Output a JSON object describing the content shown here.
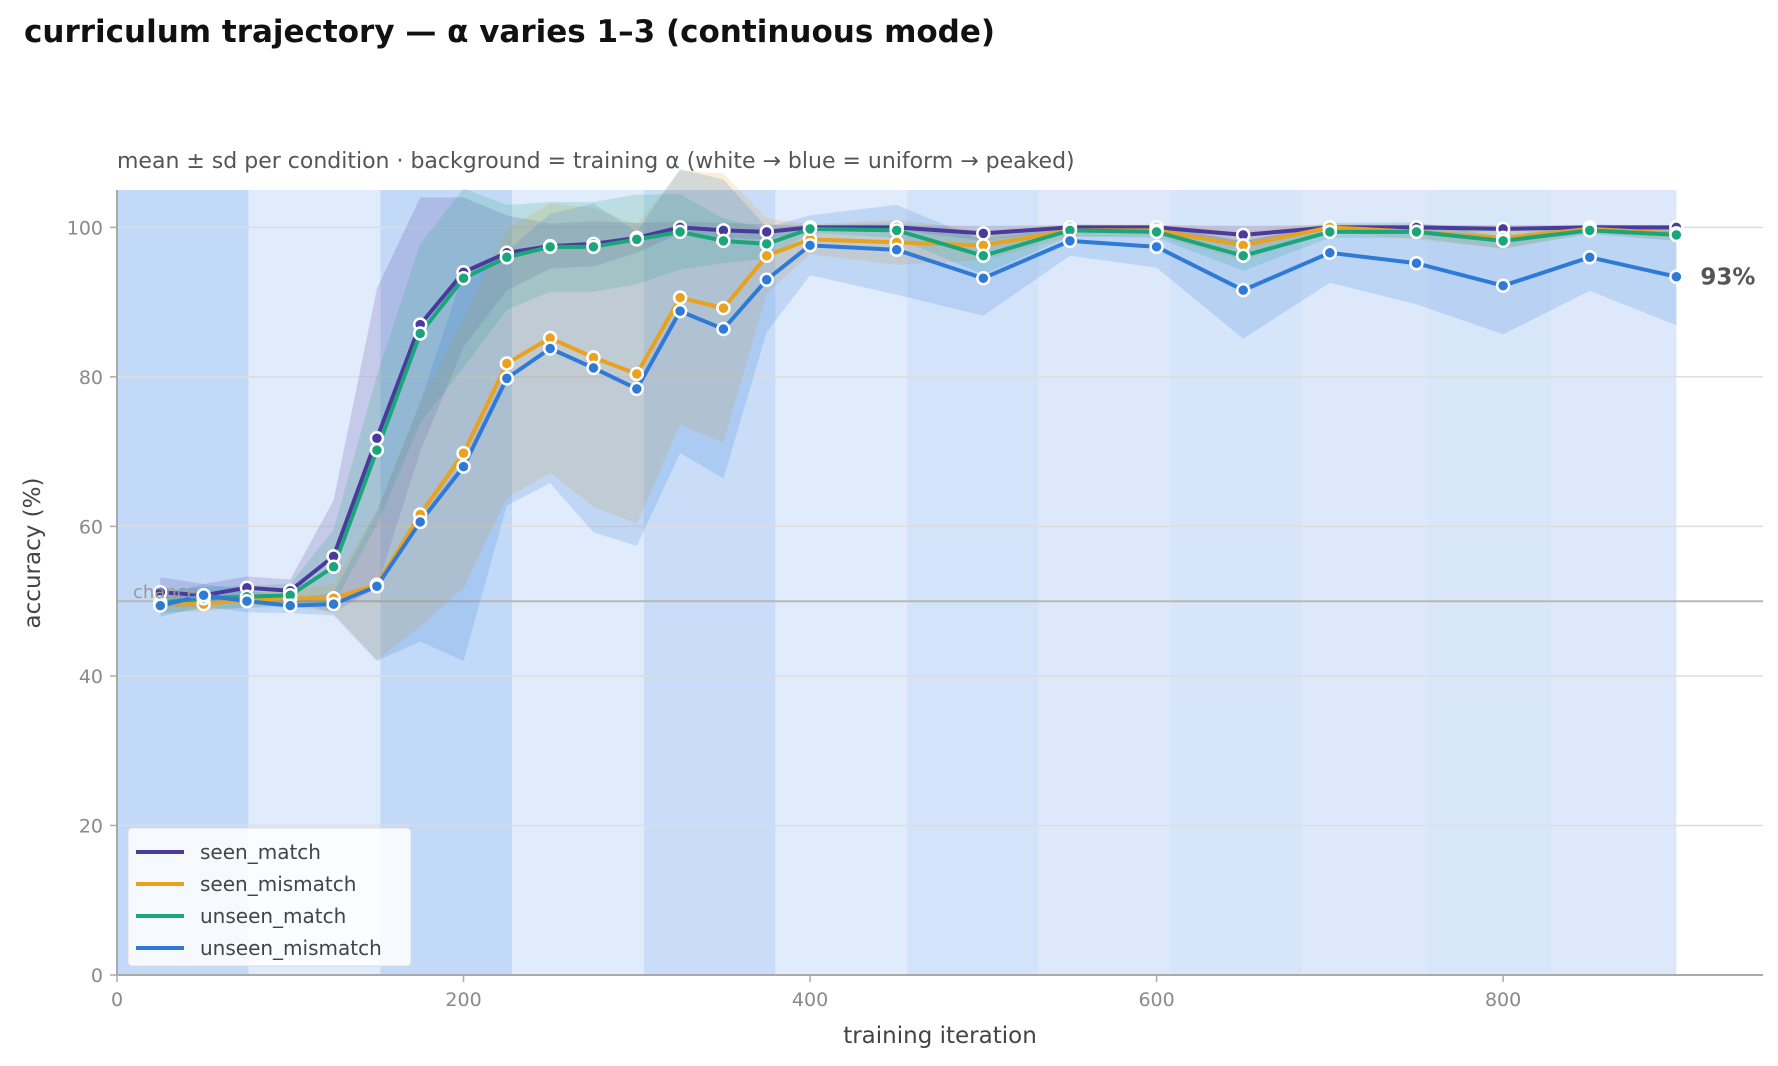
{
  "chart_data": {
    "type": "line",
    "title": "curriculum trajectory — α varies 1–3 (continuous mode)",
    "subtitle": "mean ± sd per condition · background = training α (white → blue = uniform → peaked)",
    "xlabel": "training iteration",
    "ylabel": "accuracy (%)",
    "xlim": [
      0,
      950
    ],
    "ylim": [
      0,
      105
    ],
    "xticks": [
      0,
      200,
      400,
      600,
      800
    ],
    "yticks": [
      0,
      20,
      40,
      60,
      80,
      100
    ],
    "grid": "horizontal",
    "legend_position": "lower-left",
    "x": [
      25,
      50,
      75,
      100,
      125,
      150,
      175,
      200,
      225,
      250,
      275,
      300,
      325,
      350,
      375,
      400,
      450,
      500,
      550,
      600,
      650,
      700,
      750,
      800,
      850,
      900
    ],
    "series": [
      {
        "name": "seen_match",
        "color": "#4b3a9e",
        "values": [
          51.2,
          50.8,
          51.8,
          51.4,
          56.0,
          71.8,
          87.0,
          94.0,
          96.6,
          97.5,
          97.8,
          98.6,
          100.0,
          99.6,
          99.4,
          100.0,
          100.0,
          99.2,
          100.0,
          100.0,
          99.0,
          100.0,
          100.0,
          99.8,
          100.0,
          100.0
        ],
        "sd": [
          2.0,
          1.5,
          1.5,
          1.5,
          7.5,
          20.0,
          17.0,
          10.0,
          5.0,
          3.0,
          3.0,
          2.0,
          0.8,
          1.0,
          1.0,
          0.3,
          0.3,
          1.0,
          0.3,
          0.3,
          1.2,
          0.3,
          0.3,
          0.5,
          0.3,
          0.3
        ]
      },
      {
        "name": "seen_mismatch",
        "color": "#e9a21d",
        "values": [
          49.6,
          49.6,
          50.2,
          50.4,
          50.4,
          52.2,
          61.6,
          69.8,
          81.8,
          85.2,
          82.6,
          80.4,
          90.6,
          89.2,
          96.2,
          98.4,
          98.0,
          97.6,
          99.6,
          99.6,
          97.6,
          100.0,
          99.4,
          98.6,
          99.8,
          99.2
        ],
        "sd": [
          1.0,
          1.0,
          1.0,
          1.0,
          2.0,
          10.0,
          15.0,
          18.0,
          18.0,
          18.0,
          20.0,
          20.0,
          17.0,
          18.0,
          5.0,
          2.0,
          3.0,
          2.0,
          0.8,
          0.8,
          2.0,
          0.5,
          1.0,
          1.5,
          0.5,
          1.0
        ]
      },
      {
        "name": "unseen_match",
        "color": "#1aa67a",
        "values": [
          49.8,
          50.4,
          50.6,
          50.8,
          54.6,
          70.2,
          85.8,
          93.2,
          96.0,
          97.4,
          97.4,
          98.4,
          99.4,
          98.2,
          97.8,
          99.8,
          99.6,
          96.2,
          99.6,
          99.4,
          96.2,
          99.4,
          99.4,
          98.2,
          99.6,
          99.0
        ],
        "sd": [
          1.5,
          1.5,
          1.5,
          1.5,
          5.0,
          10.0,
          12.0,
          12.0,
          7.0,
          6.0,
          6.0,
          6.0,
          5.0,
          3.0,
          2.0,
          0.5,
          1.0,
          2.5,
          0.8,
          0.8,
          2.0,
          0.8,
          0.8,
          1.0,
          0.5,
          0.8
        ]
      },
      {
        "name": "unseen_mismatch",
        "color": "#2f7ad6",
        "values": [
          49.4,
          50.8,
          50.0,
          49.4,
          49.6,
          52.0,
          60.6,
          68.0,
          79.8,
          83.8,
          81.2,
          78.4,
          88.8,
          86.4,
          93.0,
          97.6,
          97.0,
          93.2,
          98.2,
          97.4,
          91.6,
          96.6,
          95.2,
          92.2,
          96.0,
          93.4
        ],
        "sd": [
          1.5,
          1.5,
          1.5,
          1.0,
          1.5,
          10.0,
          16.0,
          26.0,
          17.0,
          18.0,
          22.0,
          21.0,
          19.0,
          20.0,
          7.0,
          4.0,
          6.0,
          5.0,
          2.0,
          2.8,
          6.5,
          4.0,
          5.5,
          6.5,
          4.5,
          6.5
        ]
      }
    ],
    "chance": {
      "label": "chance",
      "value": 50
    },
    "end_annotation": {
      "label": "93%",
      "series": "unseen_mismatch"
    },
    "background_alpha_bands": {
      "description_key": "training α level per iteration range (0 = uniform, 1 = peaked)",
      "ranges": [
        {
          "from": 0,
          "to": 76,
          "level": 0.85
        },
        {
          "from": 76,
          "to": 152,
          "level": 0.25
        },
        {
          "from": 152,
          "to": 228,
          "level": 0.85
        },
        {
          "from": 228,
          "to": 304,
          "level": 0.25
        },
        {
          "from": 304,
          "to": 380,
          "level": 0.7
        },
        {
          "from": 380,
          "to": 456,
          "level": 0.25
        },
        {
          "from": 456,
          "to": 532,
          "level": 0.5
        },
        {
          "from": 532,
          "to": 608,
          "level": 0.3
        },
        {
          "from": 608,
          "to": 684,
          "level": 0.45
        },
        {
          "from": 684,
          "to": 756,
          "level": 0.3
        },
        {
          "from": 756,
          "to": 828,
          "level": 0.4
        },
        {
          "from": 828,
          "to": 900,
          "level": 0.3
        }
      ]
    }
  }
}
